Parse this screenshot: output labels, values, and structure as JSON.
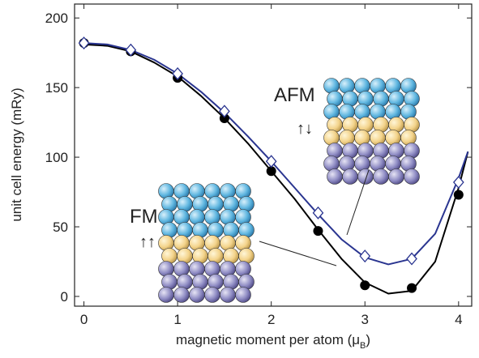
{
  "chart_data": {
    "type": "line",
    "x_label": {
      "text": "magnetic moment per atom (μ",
      "subscript": "B",
      "suffix": ")"
    },
    "y_label": "unit cell energy (mRy)",
    "xlim": [
      -0.1,
      4.14
    ],
    "ylim": [
      -7,
      210
    ],
    "xticks": [
      0,
      1,
      2,
      3,
      4
    ],
    "yticks": [
      0,
      50,
      100,
      150,
      200
    ],
    "points": [
      {
        "marker": "circle",
        "color": "#000000",
        "x": [
          0,
          0.5,
          1,
          1.5,
          2,
          2.5,
          3,
          3.5,
          4
        ],
        "values": [
          182,
          176,
          157,
          128,
          90,
          47,
          8,
          6,
          73
        ]
      },
      {
        "marker": "diamond",
        "color": "#2a3590",
        "x": [
          0,
          0.5,
          1,
          1.5,
          2,
          2.5,
          3,
          3.5,
          4
        ],
        "values": [
          182,
          177,
          160,
          133,
          97,
          60,
          29,
          27,
          82
        ]
      }
    ],
    "series": [
      {
        "color": "#000000",
        "x": [
          0,
          0.25,
          0.5,
          0.75,
          1,
          1.25,
          1.5,
          1.75,
          2,
          2.25,
          2.5,
          2.75,
          3,
          3.25,
          3.5,
          3.75,
          4,
          4.1
        ],
        "values": [
          181,
          180,
          176,
          168,
          158,
          144,
          128,
          110,
          90,
          70,
          48,
          27,
          10,
          2,
          4,
          25,
          78,
          104
        ]
      },
      {
        "color": "#2a3590",
        "x": [
          0,
          0.25,
          0.5,
          0.75,
          1,
          1.25,
          1.5,
          1.75,
          2,
          2.25,
          2.5,
          2.75,
          3,
          3.25,
          3.5,
          3.75,
          4,
          4.1
        ],
        "values": [
          182,
          181,
          177,
          170,
          160,
          147,
          132,
          115,
          97,
          78,
          59,
          41,
          28,
          23,
          27,
          45,
          85,
          104
        ]
      }
    ],
    "annotations": [
      {
        "text": "FM",
        "spin": "↑↑"
      },
      {
        "text": "AFM",
        "spin": "↑↓"
      }
    ]
  }
}
